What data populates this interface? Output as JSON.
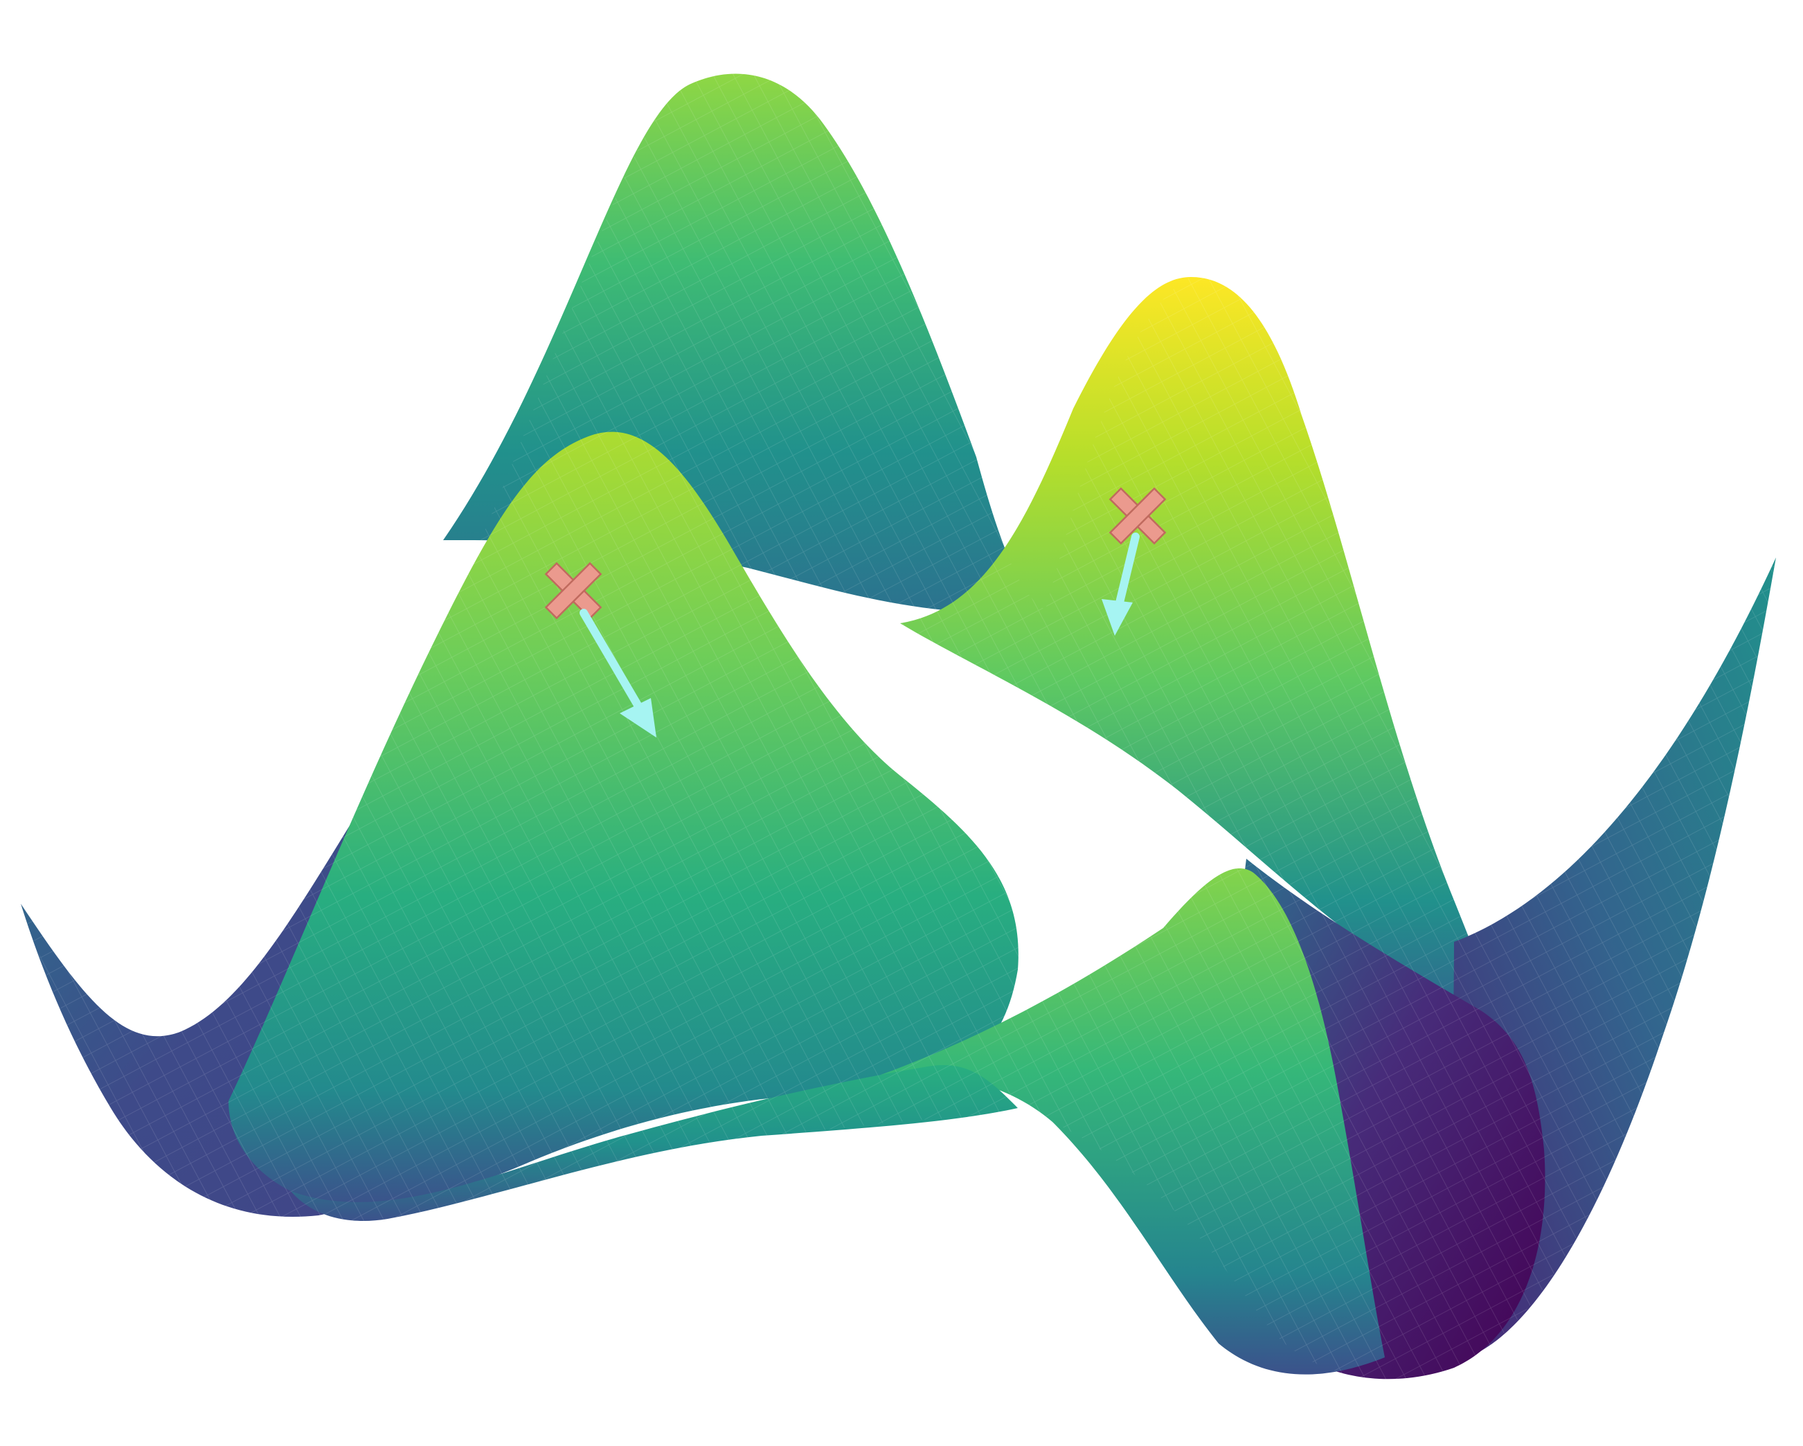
{
  "figure": {
    "kind": "3d-surface",
    "colormap": "viridis",
    "colors": {
      "background": "#ffffff",
      "marker_fill": "#eb9a8e",
      "marker_stroke": "#c06a5e",
      "arrow": "#a6f4f2",
      "mesh_line": "#ffffff"
    },
    "surface": {
      "peaks": [
        {
          "name": "tall-back-peak",
          "relative_height": 0.72
        },
        {
          "name": "right-yellow-peak",
          "relative_height": 1.0
        },
        {
          "name": "front-left-peak",
          "relative_height": 0.82
        },
        {
          "name": "front-ridge",
          "relative_height": 0.62
        }
      ],
      "deepest_basin": "front-right"
    },
    "markers": [
      {
        "name": "x-marker-left",
        "symbol": "x",
        "on": "front-left-peak"
      },
      {
        "name": "x-marker-right",
        "symbol": "x",
        "on": "right-yellow-peak"
      }
    ],
    "arrows": [
      {
        "name": "descent-arrow-left",
        "from": "x-marker-left",
        "direction": "downhill"
      },
      {
        "name": "descent-arrow-right",
        "from": "x-marker-right",
        "direction": "downhill"
      }
    ]
  }
}
